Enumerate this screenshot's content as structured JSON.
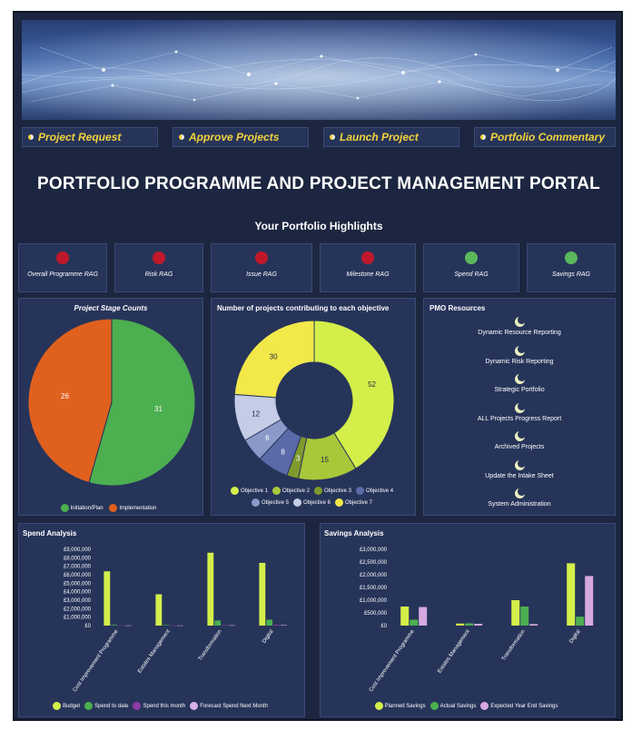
{
  "nav": [
    {
      "label": "Project Request"
    },
    {
      "label": "Approve Projects"
    },
    {
      "label": "Launch Project"
    },
    {
      "label": "Portfolio Commentary"
    }
  ],
  "title": "PORTFOLIO PROGRAMME AND PROJECT MANAGEMENT PORTAL",
  "highlights": "Your Portfolio Highlights",
  "rags": [
    {
      "label": "Overall Programme RAG",
      "status": "red",
      "color": "#c0182a"
    },
    {
      "label": "Risk RAG",
      "status": "red",
      "color": "#c0182a"
    },
    {
      "label": "Issue RAG",
      "status": "red",
      "color": "#c0182a"
    },
    {
      "label": "Milestone RAG",
      "status": "red",
      "color": "#c0182a"
    },
    {
      "label": "Spend RAG",
      "status": "green",
      "color": "#5cb85c"
    },
    {
      "label": "Savings RAG",
      "status": "green",
      "color": "#5cb85c"
    }
  ],
  "resources": {
    "title": "PMO Resources",
    "items": [
      "Dynamic Resource Reporting",
      "Dynamic Risk Reporting",
      "Strategic Portfolio",
      "ALL Projects Progress Report",
      "Archived Projects",
      "Update the Intake Sheet",
      "System Administration"
    ]
  },
  "chart_data": [
    {
      "type": "pie",
      "title": "Project Stage Counts",
      "categories": [
        "Initiation/Plan",
        "Implementation"
      ],
      "values": [
        31,
        26
      ],
      "colors": [
        "#4caf50",
        "#e0601e"
      ]
    },
    {
      "type": "pie",
      "title": "Number of projects contributing to each objective",
      "categories": [
        "Objective 1",
        "Objective 2",
        "Objective 3",
        "Objective 4",
        "Objective 5",
        "Objective 6",
        "Objective 7"
      ],
      "values": [
        52,
        15,
        3,
        8,
        6,
        12,
        30
      ],
      "colors": [
        "#d4ef4a",
        "#a8c83a",
        "#7f9a2c",
        "#5a6aa8",
        "#8a99c8",
        "#c4cce6",
        "#f2e84a"
      ]
    },
    {
      "type": "bar",
      "title": "Spend Analysis",
      "categories": [
        "Cost Improvement Programme",
        "Estates Management",
        "Transformation",
        "Digital"
      ],
      "ylim": [
        0,
        9000000
      ],
      "yticks": [
        "£0",
        "£1,000,000",
        "£2,000,000",
        "£3,000,000",
        "£4,000,000",
        "£5,000,000",
        "£6,000,000",
        "£7,000,000",
        "£8,000,000",
        "£9,000,000"
      ],
      "series": [
        {
          "name": "Budget",
          "color": "#d4ef4a",
          "values": [
            6400000,
            3700000,
            8600000,
            7400000
          ]
        },
        {
          "name": "Spend to date",
          "color": "#4caf50",
          "values": [
            80000,
            60000,
            600000,
            700000
          ]
        },
        {
          "name": "Spend this month",
          "color": "#8e3aa8",
          "values": [
            30000,
            20000,
            60000,
            90000
          ]
        },
        {
          "name": "Forecast Spend Next Month",
          "color": "#d8b0e8",
          "values": [
            20000,
            20000,
            40000,
            60000
          ]
        }
      ]
    },
    {
      "type": "bar",
      "title": "Savings Analysis",
      "categories": [
        "Cost Improvement Programme",
        "Estates Management",
        "Transformation",
        "Digital"
      ],
      "ylim": [
        0,
        3000000
      ],
      "yticks": [
        "£0",
        "£500,000",
        "£1,000,000",
        "£1,500,000",
        "£2,000,000",
        "£2,500,000",
        "£3,000,000"
      ],
      "series": [
        {
          "name": "Planned Savings",
          "color": "#d4ef4a",
          "values": [
            750000,
            80000,
            1000000,
            2450000
          ]
        },
        {
          "name": "Actual Savings",
          "color": "#4caf50",
          "values": [
            230000,
            90000,
            750000,
            350000
          ]
        },
        {
          "name": "Expected Year End Savings",
          "color": "#d8a8e0",
          "values": [
            730000,
            70000,
            60000,
            1950000
          ]
        }
      ]
    }
  ]
}
